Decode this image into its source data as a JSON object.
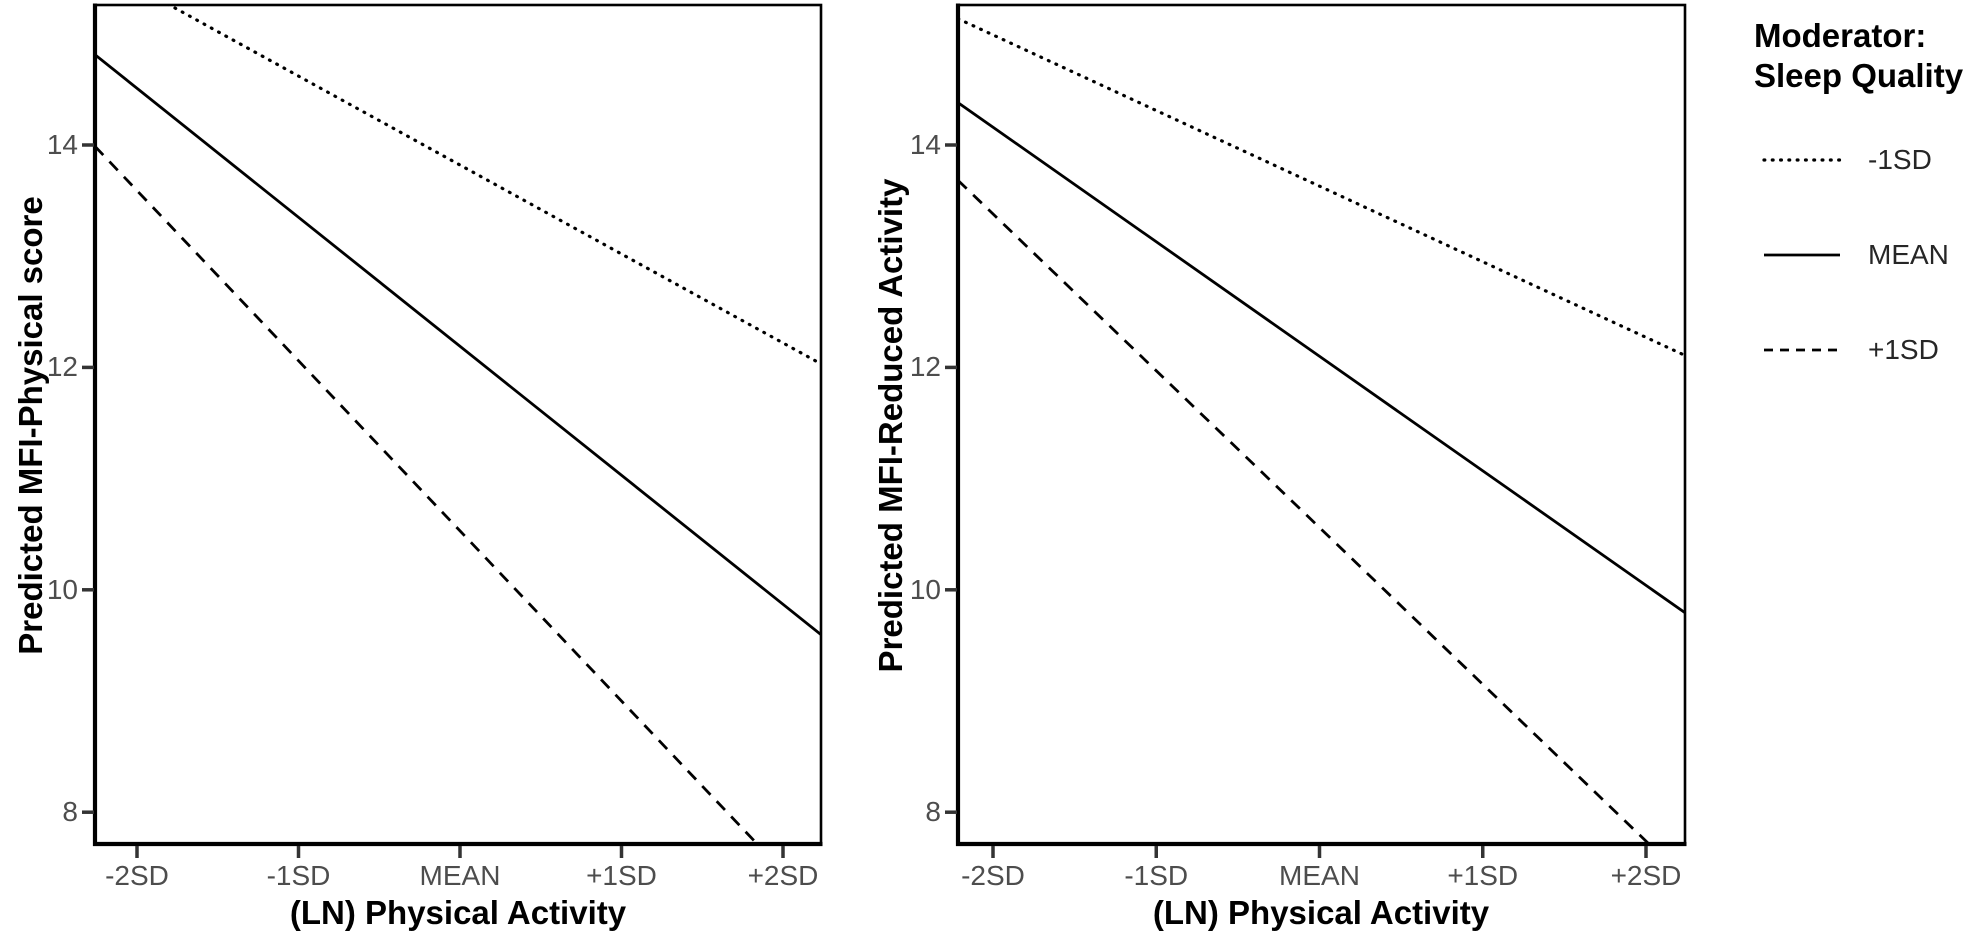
{
  "figure": {
    "background": "#ffffff",
    "colors": {
      "line": "#000000",
      "tick_mark": "#333333",
      "tick_label": "#4d4d4d",
      "axis_title": "#000000",
      "panel_border": "#000000"
    },
    "legend": {
      "title_line1": "Moderator:",
      "title_line2": "Sleep Quality",
      "position": "right",
      "items": [
        {
          "label": "-1SD",
          "linestyle": "dotted"
        },
        {
          "label": "MEAN",
          "linestyle": "solid"
        },
        {
          "label": "+1SD",
          "linestyle": "dashed"
        }
      ]
    }
  },
  "chart_data": [
    {
      "type": "line",
      "panel": "left",
      "xlabel": "(LN) Physical Activity",
      "ylabel": "Predicted MFI-Physical score",
      "categories": [
        "-2SD",
        "-1SD",
        "MEAN",
        "+1SD",
        "+2SD"
      ],
      "x_sd_units": [
        -2,
        -1,
        0,
        1,
        2
      ],
      "yticks": [
        14,
        12,
        10,
        8
      ],
      "ytick_labels": [
        "14",
        "12",
        "10",
        "8"
      ],
      "ylim": [
        7.7,
        15.3
      ],
      "grid": false,
      "legend_group": "Sleep Quality",
      "series": [
        {
          "name": "-1SD",
          "style": "dotted",
          "values": [
            15.42,
            14.62,
            13.82,
            13.02,
            12.22
          ]
        },
        {
          "name": "MEAN",
          "style": "solid",
          "values": [
            14.51,
            13.35,
            12.19,
            11.03,
            9.87
          ]
        },
        {
          "name": "+1SD",
          "style": "dashed",
          "values": [
            13.59,
            12.06,
            10.53,
            9.0,
            7.47
          ]
        }
      ]
    },
    {
      "type": "line",
      "panel": "right",
      "xlabel": "(LN) Physical Activity",
      "ylabel": "Predicted MFI-Reduced Activity",
      "categories": [
        "-2SD",
        "-1SD",
        "MEAN",
        "+1SD",
        "+2SD"
      ],
      "x_sd_units": [
        -2,
        -1,
        0,
        1,
        2
      ],
      "yticks": [
        14,
        12,
        10,
        8
      ],
      "ytick_labels": [
        "14",
        "12",
        "10",
        "8"
      ],
      "ylim": [
        7.7,
        15.3
      ],
      "grid": false,
      "legend_group": "Sleep Quality",
      "series": [
        {
          "name": "-1SD",
          "style": "dotted",
          "values": [
            14.99,
            14.31,
            13.63,
            12.95,
            12.27
          ]
        },
        {
          "name": "MEAN",
          "style": "solid",
          "values": [
            14.16,
            13.13,
            12.1,
            11.07,
            10.04
          ]
        },
        {
          "name": "+1SD",
          "style": "dashed",
          "values": [
            13.38,
            11.97,
            10.56,
            9.15,
            7.74
          ]
        }
      ]
    }
  ]
}
